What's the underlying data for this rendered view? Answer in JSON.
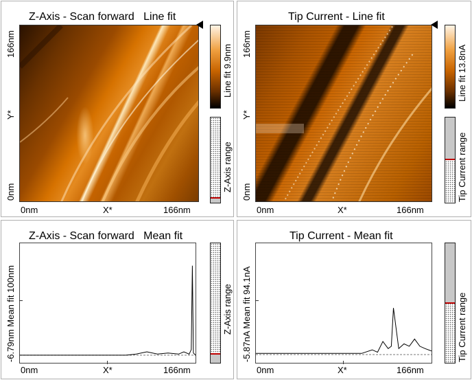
{
  "panels": {
    "z_line": {
      "title": "Z-Axis - Scan forward   Line fit",
      "x_left": "0nm",
      "x_mid": "X*",
      "x_right": "166nm",
      "y_top": "166nm",
      "y_mid": "Y*",
      "y_bottom": "0nm",
      "colorbar_label": "Line fit 9.9nm",
      "range_label": "Z-Axis range"
    },
    "tip_line": {
      "title": "Tip Current - Line fit",
      "x_left": "0nm",
      "x_mid": "X*",
      "x_right": "166nm",
      "y_top": "166nm",
      "y_mid": "Y*",
      "y_bottom": "0nm",
      "colorbar_label": "Line fit 13.8nA",
      "range_label": "Tip Current range"
    },
    "z_mean": {
      "title": "Z-Axis - Scan forward   Mean fit",
      "x_left": "0nm",
      "x_mid": "X*",
      "x_right": "166nm",
      "y_label": "-6.79nm Mean fit   100nm",
      "range_label": "Z-Axis range"
    },
    "tip_mean": {
      "title": "Tip Current - Mean fit",
      "x_left": "0nm",
      "x_mid": "X*",
      "x_right": "166nm",
      "y_label": "-5.87nA   Mean fit   94.1nA",
      "range_label": "Tip Current range"
    }
  },
  "colors": {
    "image_dark": "#1a0a00",
    "image_mid": "#c86400",
    "image_light": "#ffe7c0",
    "range_fill": "#c8c8c8",
    "range_marker": "#c00000"
  },
  "chart_data": [
    {
      "type": "line",
      "title": "Z-Axis - Scan forward   Mean fit",
      "xlabel": "X*",
      "ylabel": "Mean fit",
      "x_range_nm": [
        0,
        166
      ],
      "y_range_nm": [
        -6.79,
        100
      ],
      "series": [
        {
          "x": [
            0,
            100,
            110,
            120,
            130,
            140,
            150,
            155,
            160,
            162,
            163,
            164,
            166
          ],
          "y": [
            0,
            0,
            1,
            3,
            1,
            2,
            1,
            3,
            1,
            5,
            80,
            2,
            0
          ]
        }
      ]
    },
    {
      "type": "line",
      "title": "Tip Current - Mean fit",
      "xlabel": "X*",
      "ylabel": "Mean fit",
      "x_range_nA": [
        0,
        166
      ],
      "y_range_nA": [
        -5.87,
        94.1
      ],
      "series": [
        {
          "x": [
            0,
            100,
            110,
            115,
            120,
            125,
            128,
            130,
            135,
            140,
            145,
            150,
            155,
            160,
            166
          ],
          "y": [
            2,
            2,
            5,
            3,
            12,
            6,
            8,
            40,
            6,
            10,
            8,
            14,
            8,
            6,
            4
          ]
        }
      ]
    }
  ]
}
